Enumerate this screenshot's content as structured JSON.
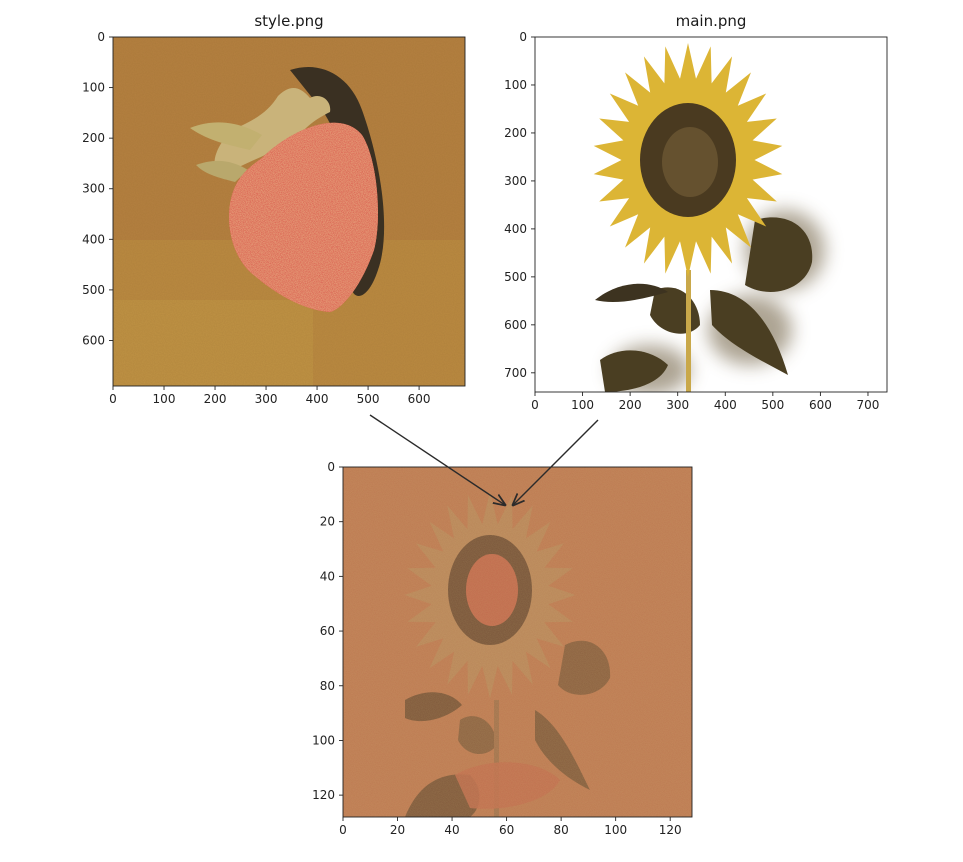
{
  "panels": {
    "style": {
      "title": "style.png",
      "x_ticks": [
        "0",
        "100",
        "200",
        "300",
        "400",
        "500",
        "600"
      ],
      "y_ticks": [
        "0",
        "100",
        "200",
        "300",
        "400",
        "500",
        "600"
      ],
      "extent": 690,
      "colors": {
        "background": "#b07a3a",
        "background_light": "#c9a050",
        "fruit": "#d9554b",
        "shadow": "#3a3022",
        "leaf": "#c8b070"
      }
    },
    "main": {
      "title": "main.png",
      "x_ticks": [
        "0",
        "100",
        "200",
        "300",
        "400",
        "500",
        "600",
        "700"
      ],
      "y_ticks": [
        "0",
        "100",
        "200",
        "300",
        "400",
        "500",
        "600",
        "700"
      ],
      "extent": 740,
      "colors": {
        "background": "#ffffff",
        "petals": "#dcb535",
        "center": "#4a3a20",
        "leaves": "#4a3e22",
        "stem": "#c9a84a"
      }
    },
    "result": {
      "title": "",
      "x_ticks": [
        "0",
        "20",
        "40",
        "60",
        "80",
        "100",
        "120"
      ],
      "y_ticks": [
        "0",
        "20",
        "40",
        "60",
        "80",
        "100",
        "120"
      ],
      "extent": 128,
      "colors": {
        "background": "#c07850",
        "petals": "#b89060",
        "center": "#2e2a1e",
        "inner": "#c85a48",
        "leaves": "#4a3e28"
      }
    }
  },
  "arrows": {
    "color": "#2b2b2b"
  }
}
